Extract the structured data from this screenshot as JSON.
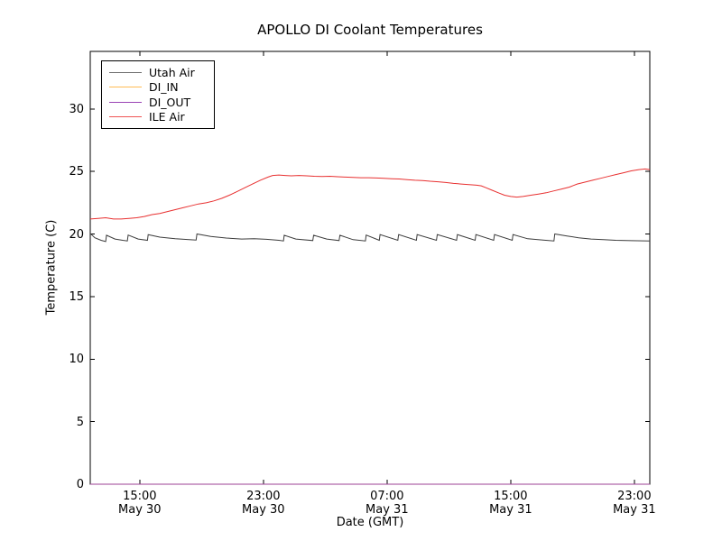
{
  "chart_data": {
    "type": "line",
    "title": "APOLLO DI Coolant Temperatures",
    "xlabel": "Date (GMT)",
    "ylabel": "Temperature (C)",
    "x_axis_note": "time axis in hours; 0 h = left edge (~11:50 May 30 GMT), span ~36.2 h",
    "xlim": [
      0,
      36.2
    ],
    "ylim": [
      0,
      34.6
    ],
    "yticks": [
      0,
      5,
      10,
      15,
      20,
      25,
      30
    ],
    "xticks": [
      {
        "pos": 3.2,
        "time": "15:00",
        "date": "May 30"
      },
      {
        "pos": 11.2,
        "time": "23:00",
        "date": "May 30"
      },
      {
        "pos": 19.2,
        "time": "07:00",
        "date": "May 31"
      },
      {
        "pos": 27.2,
        "time": "15:00",
        "date": "May 31"
      },
      {
        "pos": 35.2,
        "time": "23:00",
        "date": "May 31"
      }
    ],
    "legend": {
      "position": "upper left",
      "entries": [
        "Utah Air",
        "DI_IN",
        "DI_OUT",
        "ILE Air"
      ]
    },
    "series": [
      {
        "name": "Utah Air",
        "color": "#3c3c3c",
        "legend_color": "#6e6e6e",
        "points": [
          [
            0,
            20.05
          ],
          [
            0.3,
            19.7
          ],
          [
            0.7,
            19.5
          ],
          [
            1.0,
            19.4
          ],
          [
            1.05,
            19.9
          ],
          [
            1.6,
            19.6
          ],
          [
            2.1,
            19.5
          ],
          [
            2.4,
            19.45
          ],
          [
            2.45,
            19.92
          ],
          [
            3.1,
            19.6
          ],
          [
            3.7,
            19.5
          ],
          [
            3.75,
            19.95
          ],
          [
            4.5,
            19.75
          ],
          [
            5.5,
            19.62
          ],
          [
            6.4,
            19.55
          ],
          [
            6.85,
            19.52
          ],
          [
            6.9,
            20.0
          ],
          [
            7.8,
            19.8
          ],
          [
            8.8,
            19.68
          ],
          [
            9.8,
            19.6
          ],
          [
            10.6,
            19.62
          ],
          [
            11.4,
            19.58
          ],
          [
            12.2,
            19.5
          ],
          [
            12.5,
            19.45
          ],
          [
            12.55,
            19.9
          ],
          [
            13.3,
            19.6
          ],
          [
            14.4,
            19.48
          ],
          [
            14.45,
            19.9
          ],
          [
            15.3,
            19.6
          ],
          [
            16.1,
            19.48
          ],
          [
            16.15,
            19.9
          ],
          [
            17.0,
            19.55
          ],
          [
            17.8,
            19.45
          ],
          [
            17.85,
            19.92
          ],
          [
            18.7,
            19.5
          ],
          [
            18.75,
            19.95
          ],
          [
            19.9,
            19.5
          ],
          [
            19.95,
            19.95
          ],
          [
            21.1,
            19.5
          ],
          [
            21.15,
            19.95
          ],
          [
            22.4,
            19.5
          ],
          [
            22.45,
            19.95
          ],
          [
            23.7,
            19.5
          ],
          [
            23.75,
            19.95
          ],
          [
            24.9,
            19.5
          ],
          [
            24.95,
            19.95
          ],
          [
            26.1,
            19.5
          ],
          [
            26.15,
            19.95
          ],
          [
            27.3,
            19.5
          ],
          [
            27.35,
            19.95
          ],
          [
            28.3,
            19.62
          ],
          [
            29.3,
            19.52
          ],
          [
            30.0,
            19.45
          ],
          [
            30.05,
            20.0
          ],
          [
            30.8,
            19.85
          ],
          [
            31.6,
            19.7
          ],
          [
            32.4,
            19.6
          ],
          [
            33.2,
            19.55
          ],
          [
            34.0,
            19.5
          ],
          [
            35.0,
            19.47
          ],
          [
            36.2,
            19.45
          ]
        ]
      },
      {
        "name": "DI_IN",
        "color": "#ffaa33",
        "legend_color": "#ffbb55",
        "points": [
          [
            0,
            0
          ],
          [
            36.2,
            0
          ]
        ]
      },
      {
        "name": "DI_OUT",
        "color": "#8b2fa8",
        "legend_color": "#9a44b5",
        "points": [
          [
            0,
            0
          ],
          [
            36.2,
            0
          ]
        ]
      },
      {
        "name": "ILE Air",
        "color": "#e83030",
        "legend_color": "#f05555",
        "points": [
          [
            0,
            21.2
          ],
          [
            0.5,
            21.25
          ],
          [
            1.0,
            21.3
          ],
          [
            1.5,
            21.2
          ],
          [
            2.0,
            21.2
          ],
          [
            2.5,
            21.25
          ],
          [
            3.0,
            21.3
          ],
          [
            3.5,
            21.4
          ],
          [
            4.0,
            21.55
          ],
          [
            4.5,
            21.65
          ],
          [
            5.0,
            21.8
          ],
          [
            5.5,
            21.95
          ],
          [
            6.0,
            22.1
          ],
          [
            6.5,
            22.25
          ],
          [
            7.0,
            22.4
          ],
          [
            7.5,
            22.5
          ],
          [
            8.0,
            22.65
          ],
          [
            8.5,
            22.85
          ],
          [
            9.0,
            23.1
          ],
          [
            9.5,
            23.4
          ],
          [
            10.0,
            23.7
          ],
          [
            10.5,
            24.0
          ],
          [
            11.0,
            24.3
          ],
          [
            11.5,
            24.55
          ],
          [
            11.8,
            24.68
          ],
          [
            12.2,
            24.72
          ],
          [
            12.6,
            24.68
          ],
          [
            13.0,
            24.65
          ],
          [
            13.5,
            24.68
          ],
          [
            14.0,
            24.65
          ],
          [
            14.5,
            24.62
          ],
          [
            15.0,
            24.6
          ],
          [
            15.5,
            24.62
          ],
          [
            16.0,
            24.58
          ],
          [
            16.5,
            24.55
          ],
          [
            17.0,
            24.52
          ],
          [
            17.5,
            24.5
          ],
          [
            18.0,
            24.5
          ],
          [
            18.5,
            24.48
          ],
          [
            19.0,
            24.45
          ],
          [
            19.5,
            24.42
          ],
          [
            20.0,
            24.4
          ],
          [
            20.5,
            24.35
          ],
          [
            21.0,
            24.3
          ],
          [
            21.5,
            24.28
          ],
          [
            22.0,
            24.22
          ],
          [
            22.5,
            24.18
          ],
          [
            23.0,
            24.12
          ],
          [
            23.5,
            24.05
          ],
          [
            24.0,
            24.0
          ],
          [
            24.5,
            23.95
          ],
          [
            25.0,
            23.9
          ],
          [
            25.3,
            23.85
          ],
          [
            25.6,
            23.7
          ],
          [
            26.0,
            23.5
          ],
          [
            26.4,
            23.3
          ],
          [
            26.8,
            23.1
          ],
          [
            27.2,
            23.0
          ],
          [
            27.6,
            22.95
          ],
          [
            28.0,
            23.0
          ],
          [
            28.5,
            23.1
          ],
          [
            29.0,
            23.2
          ],
          [
            29.5,
            23.3
          ],
          [
            30.0,
            23.45
          ],
          [
            30.5,
            23.6
          ],
          [
            31.0,
            23.75
          ],
          [
            31.5,
            24.0
          ],
          [
            32.0,
            24.15
          ],
          [
            32.5,
            24.3
          ],
          [
            33.0,
            24.45
          ],
          [
            33.5,
            24.6
          ],
          [
            34.0,
            24.75
          ],
          [
            34.5,
            24.9
          ],
          [
            35.0,
            25.05
          ],
          [
            35.5,
            25.15
          ],
          [
            35.9,
            25.2
          ],
          [
            36.2,
            25.15
          ]
        ]
      }
    ]
  }
}
